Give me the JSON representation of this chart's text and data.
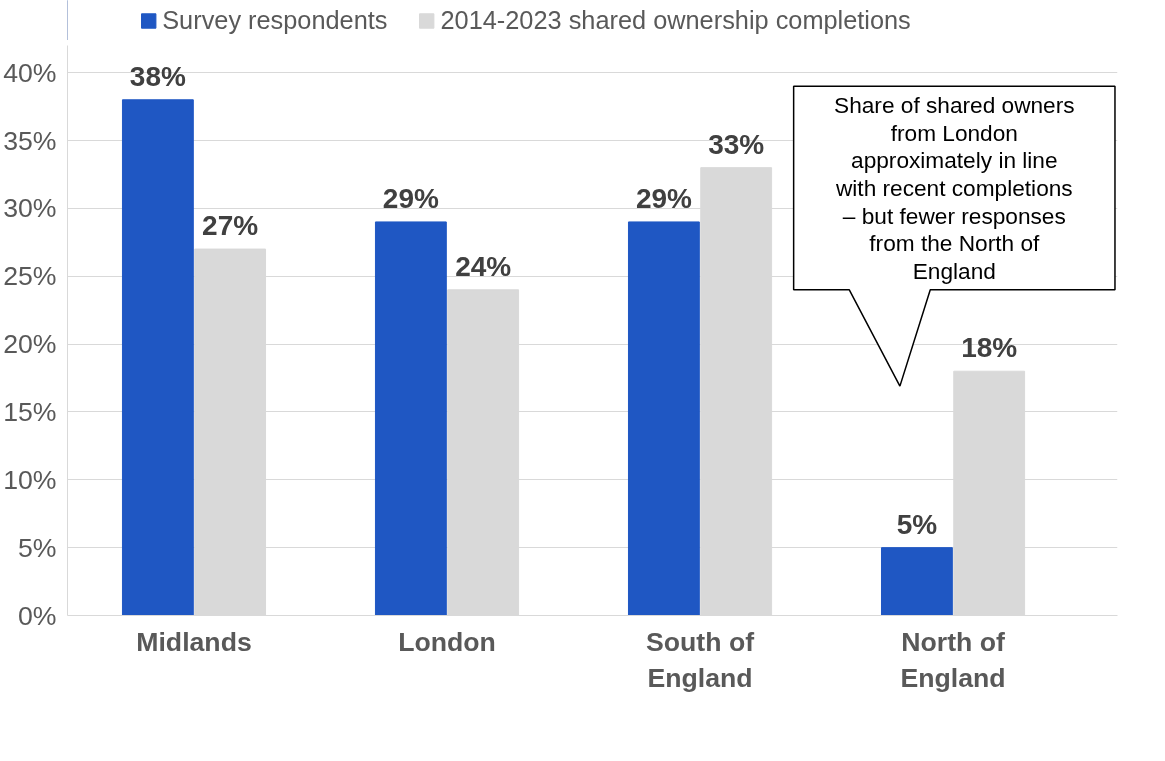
{
  "chart_data": {
    "type": "bar",
    "categories": [
      "Midlands",
      "London",
      "South of England",
      "North of England"
    ],
    "series": [
      {
        "name": "Survey respondents",
        "color": "#1f57c3",
        "values": [
          38,
          29,
          29,
          5
        ],
        "value_labels": [
          "38%",
          "29%",
          "29%",
          "5%"
        ]
      },
      {
        "name": "2014-2023 shared ownership completions",
        "color": "#d9d9d9",
        "values": [
          27,
          24,
          33,
          18
        ],
        "value_labels": [
          "27%",
          "24%",
          "33%",
          "18%"
        ]
      }
    ],
    "ylim": [
      0,
      42
    ],
    "yticks": [
      {
        "value": 0,
        "label": "0%"
      },
      {
        "value": 5,
        "label": "5%"
      },
      {
        "value": 10,
        "label": "10%"
      },
      {
        "value": 15,
        "label": "15%"
      },
      {
        "value": 20,
        "label": "20%"
      },
      {
        "value": 25,
        "label": "25%"
      },
      {
        "value": 30,
        "label": "30%"
      },
      {
        "value": 35,
        "label": "35%"
      },
      {
        "value": 40,
        "label": "40%"
      }
    ],
    "grid": "y",
    "legend": "top",
    "annotations": [
      "Share of shared owners from London approximately in line with recent completions – but fewer responses from the North of England"
    ]
  }
}
